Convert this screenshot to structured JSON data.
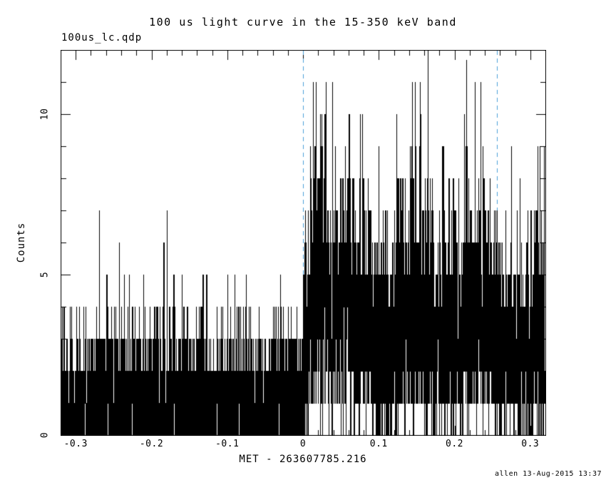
{
  "chart_data": {
    "type": "line",
    "title": "100 us light curve in the 15-350 keV band",
    "file_label": "100us_lc.qdp",
    "xlabel": "MET - 263607785.216",
    "ylabel": "Counts",
    "timestamp": "allen 13-Aug-2015 13:37",
    "xlim": [
      -0.32,
      0.32
    ],
    "ylim": [
      0,
      12
    ],
    "x_tick_values": [
      -0.3,
      -0.2,
      -0.1,
      0,
      0.1,
      0.2,
      0.3
    ],
    "x_tick_labels": [
      "-0.3",
      "-0.2",
      "-0.1",
      "0",
      "0.1",
      "0.2",
      "0.3"
    ],
    "x_minor_step": 0.02,
    "x_major_step": 0.1,
    "y_tick_values": [
      0,
      5,
      10
    ],
    "y_tick_labels": [
      "0",
      "5",
      "10"
    ],
    "y_minor_step": 1,
    "y_major_step": 5,
    "grid": false,
    "legend": null,
    "bin_width": 0.0001,
    "series_color": "#000000",
    "frame_color": "#000000",
    "vlines": {
      "x": [
        0,
        0.256
      ],
      "color": "#4a9fd8",
      "style": "dashed"
    },
    "seed": 20150813,
    "segments": [
      {
        "x0": -0.32,
        "x1": 0.0,
        "mean": 1.1
      },
      {
        "x0": 0.0,
        "x1": 0.008,
        "mean": 2.6
      },
      {
        "x0": 0.008,
        "x1": 0.03,
        "mean": 4.4
      },
      {
        "x0": 0.03,
        "x1": 0.06,
        "mean": 4.0
      },
      {
        "x0": 0.06,
        "x1": 0.09,
        "mean": 3.6
      },
      {
        "x0": 0.09,
        "x1": 0.125,
        "mean": 2.7
      },
      {
        "x0": 0.125,
        "x1": 0.17,
        "mean": 3.8
      },
      {
        "x0": 0.17,
        "x1": 0.205,
        "mean": 3.0
      },
      {
        "x0": 0.205,
        "x1": 0.235,
        "mean": 3.7
      },
      {
        "x0": 0.235,
        "x1": 0.256,
        "mean": 3.2
      },
      {
        "x0": 0.256,
        "x1": 0.3,
        "mean": 2.5
      },
      {
        "x0": 0.3,
        "x1": 0.32,
        "mean": 3.0
      }
    ],
    "spikes": [
      {
        "x": -0.27,
        "count": 7
      },
      {
        "x": -0.18,
        "count": 7
      },
      {
        "x": -0.184,
        "count": 6
      },
      {
        "x": -0.243,
        "count": 6
      },
      {
        "x": 0.013,
        "count": 11
      },
      {
        "x": 0.016,
        "count": 11
      },
      {
        "x": 0.022,
        "count": 10
      },
      {
        "x": 0.075,
        "count": 10
      },
      {
        "x": 0.078,
        "count": 10
      },
      {
        "x": 0.143,
        "count": 9
      },
      {
        "x": 0.147,
        "count": 11
      },
      {
        "x": 0.155,
        "count": 10
      },
      {
        "x": 0.185,
        "count": 9
      },
      {
        "x": 0.215,
        "count": 11.7
      },
      {
        "x": 0.212,
        "count": 10
      },
      {
        "x": 0.312,
        "count": 9
      },
      {
        "x": 0.318,
        "count": 9
      }
    ],
    "description": "Poisson-noise burst light curve at 100 microsecond binning; segments give the mean counts per bin over each time interval, spikes are individually visible tall bins."
  }
}
